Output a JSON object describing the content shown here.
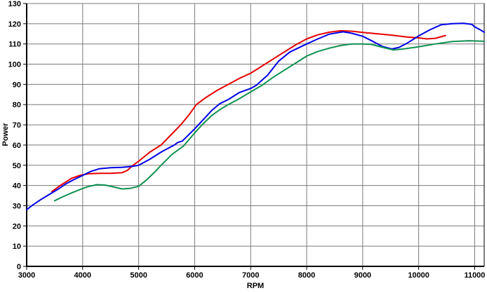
{
  "chart_data": {
    "type": "line",
    "title": "",
    "xlabel": "RPM",
    "ylabel": "Power",
    "xlim": [
      3000,
      11170
    ],
    "ylim": [
      0,
      130
    ],
    "xticks": [
      3000,
      4000,
      5000,
      6000,
      7000,
      8000,
      9000,
      10000,
      11000
    ],
    "yticks": [
      0,
      10,
      20,
      30,
      40,
      50,
      60,
      70,
      80,
      90,
      100,
      110,
      120,
      130
    ],
    "grid": true,
    "legend_position": "none",
    "background_color": "#ffffff",
    "grid_color": "#7a7a7a",
    "axis_color": "#000000",
    "series": [
      {
        "name": "red-curve",
        "color": "#e60000",
        "points": [
          [
            3450,
            37
          ],
          [
            3600,
            40
          ],
          [
            3800,
            43.5
          ],
          [
            3950,
            45
          ],
          [
            4100,
            45.8
          ],
          [
            4300,
            46
          ],
          [
            4500,
            46
          ],
          [
            4700,
            46.3
          ],
          [
            4800,
            47.5
          ],
          [
            4900,
            50
          ],
          [
            5000,
            52
          ],
          [
            5200,
            56.5
          ],
          [
            5400,
            60
          ],
          [
            5600,
            65.7
          ],
          [
            5750,
            70
          ],
          [
            5900,
            75
          ],
          [
            6030,
            80
          ],
          [
            6200,
            83.5
          ],
          [
            6400,
            87
          ],
          [
            6600,
            90
          ],
          [
            6800,
            93
          ],
          [
            7000,
            95.5
          ],
          [
            7200,
            99
          ],
          [
            7400,
            102.5
          ],
          [
            7600,
            106
          ],
          [
            7800,
            109.5
          ],
          [
            8000,
            112.5
          ],
          [
            8200,
            114.5
          ],
          [
            8400,
            115.8
          ],
          [
            8600,
            116.5
          ],
          [
            8800,
            116.3
          ],
          [
            9000,
            115.7
          ],
          [
            9200,
            115.2
          ],
          [
            9500,
            114.4
          ],
          [
            9800,
            113.4
          ],
          [
            10000,
            113
          ],
          [
            10150,
            112.5
          ],
          [
            10300,
            112.8
          ],
          [
            10480,
            114.2
          ]
        ]
      },
      {
        "name": "blue-curve",
        "color": "#0000e6",
        "points": [
          [
            3000,
            28
          ],
          [
            3100,
            30.2
          ],
          [
            3250,
            33
          ],
          [
            3400,
            35.5
          ],
          [
            3550,
            38
          ],
          [
            3700,
            40.8
          ],
          [
            3850,
            43
          ],
          [
            4000,
            45
          ],
          [
            4150,
            47
          ],
          [
            4300,
            48.3
          ],
          [
            4500,
            48.8
          ],
          [
            4700,
            49
          ],
          [
            4900,
            49.5
          ],
          [
            5000,
            50
          ],
          [
            5200,
            53
          ],
          [
            5400,
            56.5
          ],
          [
            5635,
            60
          ],
          [
            5700,
            61.3
          ],
          [
            5780,
            62
          ],
          [
            6000,
            68
          ],
          [
            6150,
            72.5
          ],
          [
            6300,
            77
          ],
          [
            6450,
            80.5
          ],
          [
            6600,
            82.5
          ],
          [
            6800,
            86
          ],
          [
            7000,
            88
          ],
          [
            7100,
            89.5
          ],
          [
            7300,
            94.5
          ],
          [
            7500,
            101.5
          ],
          [
            7700,
            106
          ],
          [
            8000,
            110
          ],
          [
            8200,
            112.5
          ],
          [
            8400,
            114.8
          ],
          [
            8650,
            116
          ],
          [
            8800,
            115.3
          ],
          [
            9000,
            113.8
          ],
          [
            9200,
            111
          ],
          [
            9350,
            108.8
          ],
          [
            9520,
            107.5
          ],
          [
            9650,
            108.3
          ],
          [
            9800,
            110.5
          ],
          [
            10000,
            114
          ],
          [
            10200,
            117
          ],
          [
            10400,
            119.5
          ],
          [
            10600,
            120
          ],
          [
            10800,
            120.2
          ],
          [
            10950,
            119.7
          ],
          [
            11000,
            118.5
          ],
          [
            11100,
            117
          ],
          [
            11170,
            115.8
          ]
        ]
      },
      {
        "name": "green-curve",
        "color": "#0f9150",
        "points": [
          [
            3500,
            32.5
          ],
          [
            3650,
            34.5
          ],
          [
            3800,
            36.3
          ],
          [
            3950,
            38
          ],
          [
            4100,
            39.5
          ],
          [
            4250,
            40.4
          ],
          [
            4400,
            40.2
          ],
          [
            4550,
            39.3
          ],
          [
            4700,
            38.3
          ],
          [
            4850,
            38.6
          ],
          [
            5000,
            39.6
          ],
          [
            5150,
            43
          ],
          [
            5300,
            47
          ],
          [
            5400,
            50
          ],
          [
            5600,
            55.5
          ],
          [
            5800,
            59.5
          ],
          [
            6000,
            66
          ],
          [
            6150,
            70.5
          ],
          [
            6300,
            74.5
          ],
          [
            6450,
            77.5
          ],
          [
            6600,
            80
          ],
          [
            6800,
            83
          ],
          [
            7000,
            86.3
          ],
          [
            7200,
            89.5
          ],
          [
            7400,
            93.5
          ],
          [
            7600,
            97
          ],
          [
            7800,
            100.5
          ],
          [
            8000,
            104
          ],
          [
            8200,
            106.3
          ],
          [
            8400,
            107.9
          ],
          [
            8600,
            109.2
          ],
          [
            8800,
            110
          ],
          [
            9000,
            110
          ],
          [
            9150,
            109.8
          ],
          [
            9300,
            108.7
          ],
          [
            9550,
            107
          ],
          [
            9750,
            107.6
          ],
          [
            10000,
            108.6
          ],
          [
            10300,
            110
          ],
          [
            10600,
            111.2
          ],
          [
            10900,
            111.6
          ],
          [
            11170,
            111.3
          ]
        ]
      }
    ]
  }
}
